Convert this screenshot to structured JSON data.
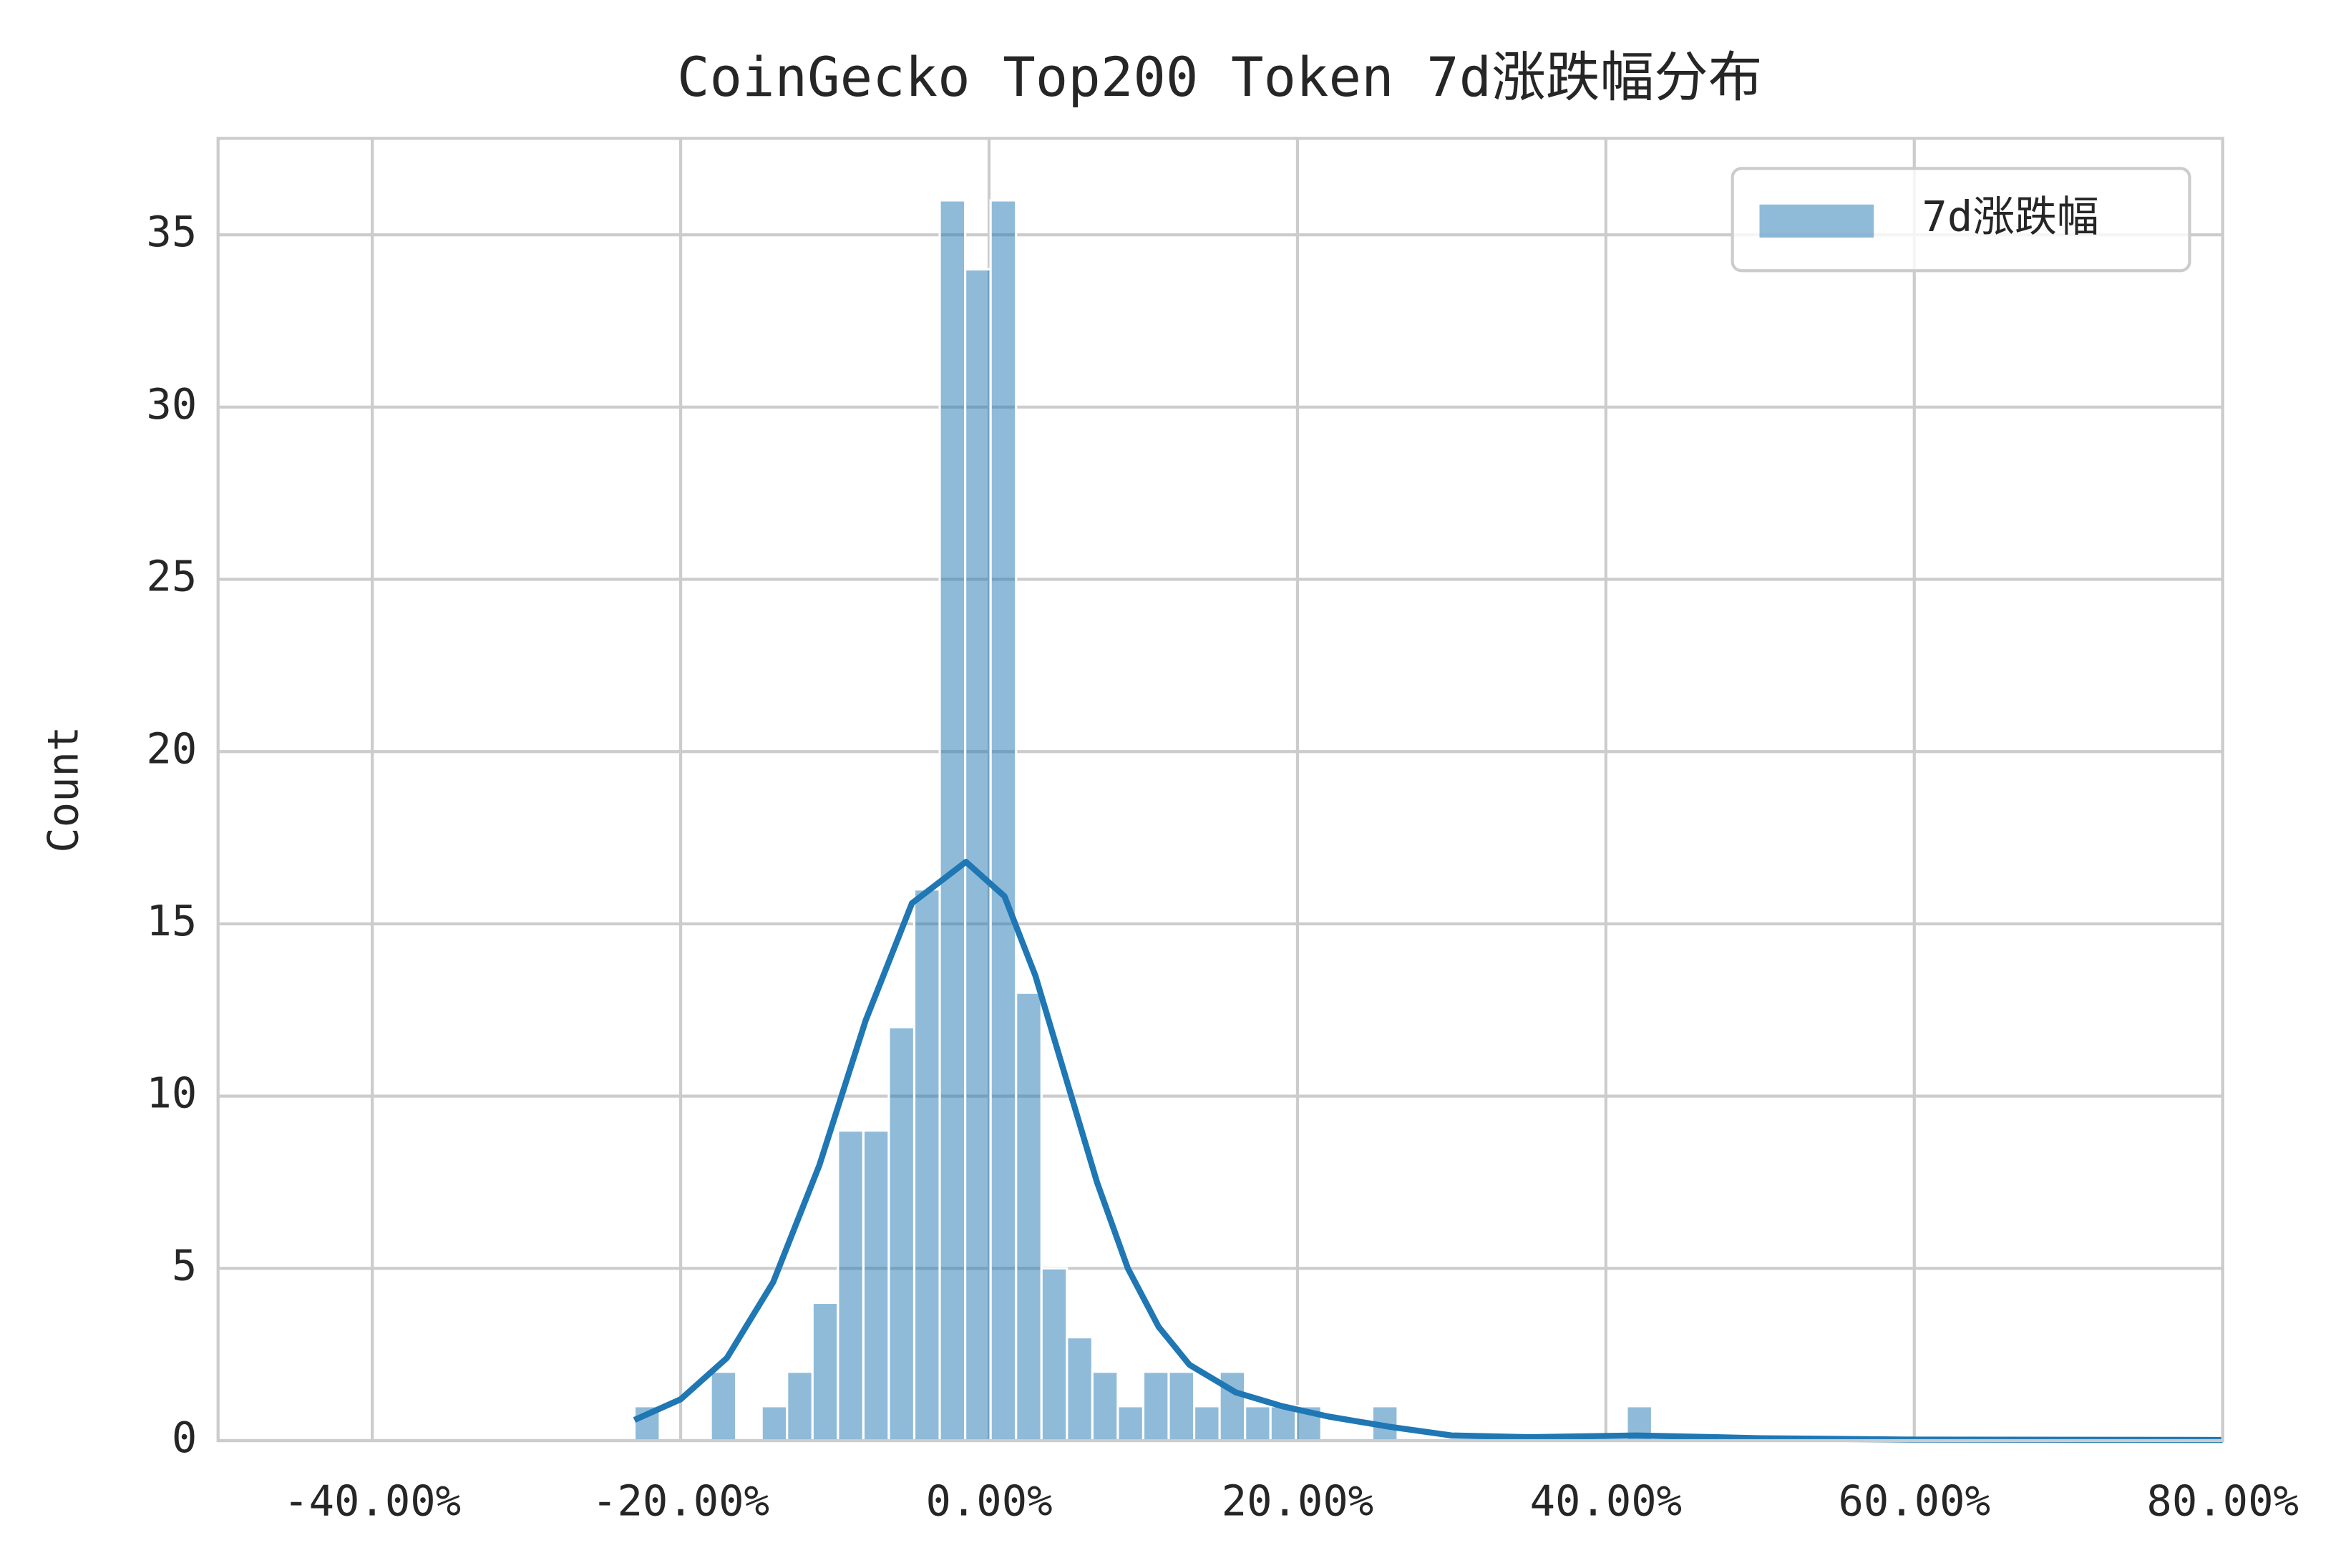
{
  "chart_data": {
    "type": "histogram",
    "title": "CoinGecko Top200 Token 7d涨跌幅分布",
    "y_label": "Count",
    "bins": [
      -23,
      -21.35,
      -19.7,
      -18.05,
      -16.4,
      -14.75,
      -13.1,
      -11.45,
      -9.8,
      -8.15,
      -6.5,
      -4.85,
      -3.2,
      -1.55,
      0.1,
      1.75,
      3.4,
      5.05,
      6.7,
      8.35,
      10,
      11.65,
      13.3,
      14.95,
      16.6,
      18.25,
      19.9,
      21.55,
      23.2,
      24.85,
      26.5,
      28.15,
      29.8,
      31.45,
      33.1,
      34.75,
      36.4,
      38.05,
      39.7,
      41.35,
      43
    ],
    "series": [
      {
        "name": "7d涨跌幅",
        "color": "#1f77b4",
        "values": [
          1,
          0,
          0,
          2,
          0,
          1,
          2,
          4,
          9,
          9,
          12,
          16,
          36,
          34,
          36,
          13,
          5,
          3,
          2,
          1,
          2,
          2,
          1,
          2,
          1,
          1,
          1,
          0,
          0,
          1,
          0,
          0,
          0,
          0,
          0,
          0,
          0,
          0,
          0,
          1
        ]
      }
    ],
    "kde": {
      "color": "#1f77b4",
      "x": [
        -23,
        -20,
        -17,
        -14,
        -11,
        -8,
        -5,
        -1.5,
        1,
        3,
        5,
        7,
        9,
        11,
        13,
        16,
        19,
        22,
        26,
        30,
        35,
        42,
        50,
        60,
        80
      ],
      "values": [
        0.6,
        1.2,
        2.4,
        4.6,
        8.0,
        12.2,
        15.6,
        16.8,
        15.8,
        13.5,
        10.5,
        7.5,
        5.0,
        3.3,
        2.2,
        1.4,
        1.0,
        0.7,
        0.4,
        0.15,
        0.1,
        0.15,
        0.07,
        0.03,
        0.02
      ]
    },
    "xlim": [
      -50,
      80
    ],
    "ylim": [
      0,
      37.8
    ],
    "xticks": [
      {
        "value": -40,
        "label": "-40.00%"
      },
      {
        "value": -20,
        "label": "-20.00%"
      },
      {
        "value": 0,
        "label": "0.00%"
      },
      {
        "value": 20,
        "label": "20.00%"
      },
      {
        "value": 40,
        "label": "40.00%"
      },
      {
        "value": 60,
        "label": "60.00%"
      },
      {
        "value": 80,
        "label": "80.00%"
      }
    ],
    "yticks": [
      0,
      5,
      10,
      15,
      20,
      25,
      30,
      35
    ],
    "grid": true,
    "legend": "upper right"
  }
}
